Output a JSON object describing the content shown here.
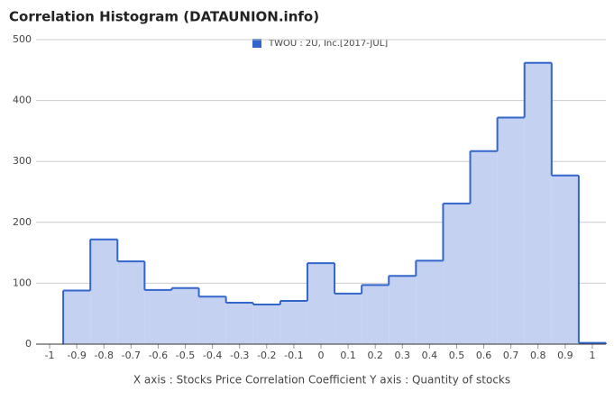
{
  "chart_data": {
    "type": "histogram",
    "title": "Correlation Histogram (DATAUNION.info)",
    "axis_label": "X axis : Stocks Price Correlation Coefficient  Y axis : Quantity of stocks",
    "series_name": "TWOU : 2U, Inc.[2017-JUL]",
    "color": "#3366cc",
    "fill": "#c5d1f0",
    "bins": [
      -0.95,
      -0.85,
      -0.75,
      -0.65,
      -0.55,
      -0.45,
      -0.35,
      -0.25,
      -0.15,
      -0.05,
      0.05,
      0.15,
      0.25,
      0.35,
      0.45,
      0.55,
      0.65,
      0.75,
      0.85,
      0.95,
      1.05
    ],
    "values": [
      88,
      172,
      136,
      89,
      92,
      78,
      68,
      65,
      71,
      133,
      83,
      97,
      112,
      137,
      231,
      317,
      372,
      462,
      277,
      2
    ],
    "xlim": [
      -1.05,
      1.05
    ],
    "xticks": [
      -1,
      -0.9,
      -0.8,
      -0.7,
      -0.6,
      -0.5,
      -0.4,
      -0.3,
      -0.2,
      -0.1,
      0,
      0.1,
      0.2,
      0.3,
      0.4,
      0.5,
      0.6,
      0.7,
      0.8,
      0.9,
      1
    ],
    "ylim": [
      0,
      500
    ],
    "yticks": [
      0,
      100,
      200,
      300,
      400,
      500
    ],
    "grid": true
  }
}
